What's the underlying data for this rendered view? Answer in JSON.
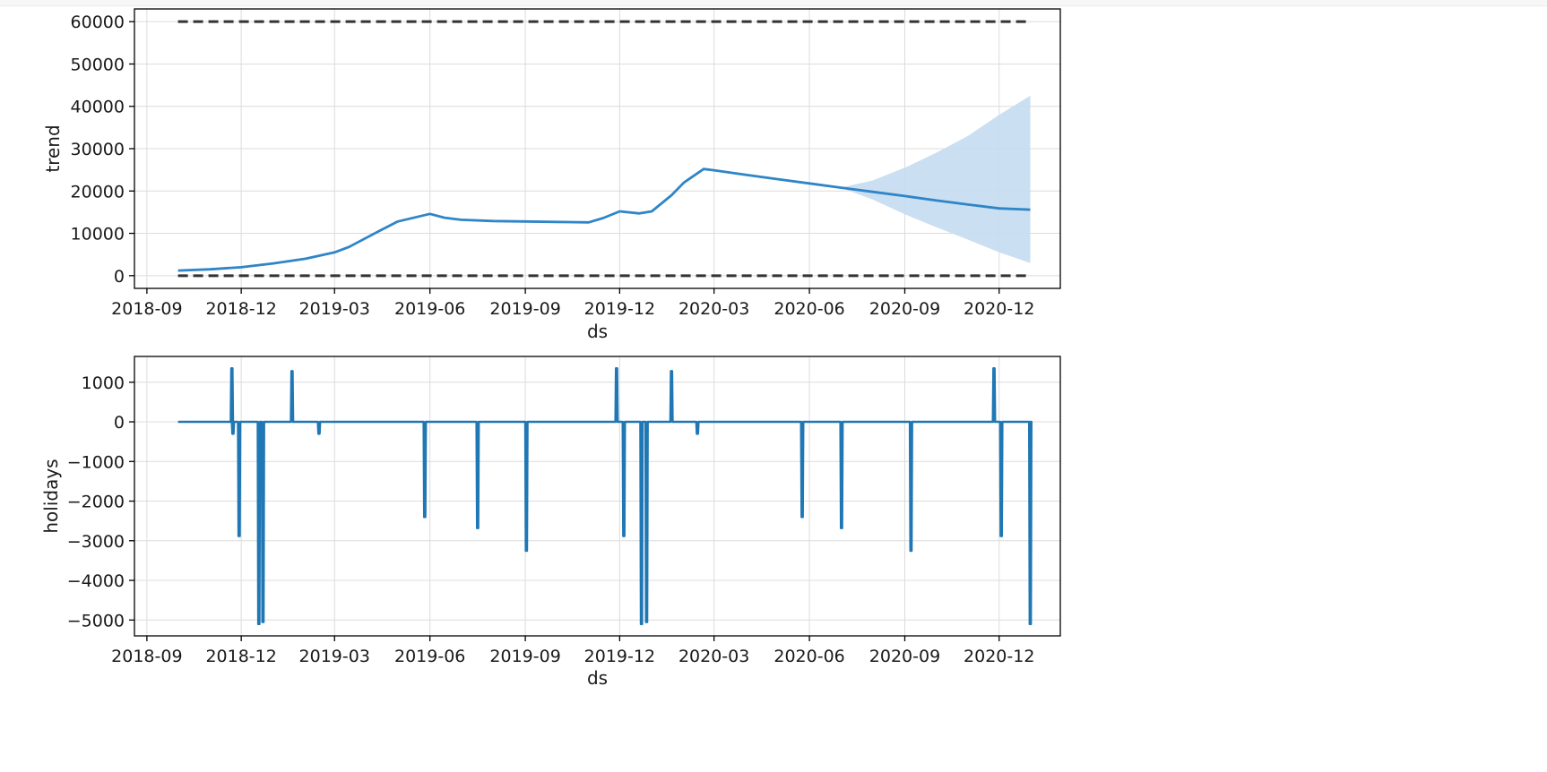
{
  "chart_data": [
    {
      "type": "line",
      "xlabel": "ds",
      "ylabel": "trend",
      "ylim": [
        -3000,
        63000
      ],
      "x_ticks": [
        "2018-09",
        "2018-12",
        "2019-03",
        "2019-06",
        "2019-09",
        "2019-12",
        "2020-03",
        "2020-06",
        "2020-09",
        "2020-12"
      ],
      "y_ticks": [
        0,
        10000,
        20000,
        30000,
        40000,
        50000,
        60000
      ],
      "grid": true,
      "colors": {
        "line": "#2e85c7",
        "band": "#c4dbef",
        "cap": "#333333"
      },
      "cap_lines": [
        {
          "y": 60000,
          "from": "2018-10-01",
          "to": "2020-12-31",
          "style": "dashed"
        },
        {
          "y": 0,
          "from": "2018-10-01",
          "to": "2020-12-31",
          "style": "dashed"
        }
      ],
      "series": [
        {
          "x": [
            "2018-10-01",
            "2018-11-01",
            "2018-12-01",
            "2019-01-01",
            "2019-02-01",
            "2019-03-01",
            "2019-03-15",
            "2019-04-01",
            "2019-04-15",
            "2019-05-01",
            "2019-06-01",
            "2019-06-15",
            "2019-07-01",
            "2019-08-01",
            "2019-09-01",
            "2019-10-01",
            "2019-11-01",
            "2019-11-15",
            "2019-12-01",
            "2019-12-20",
            "2020-01-01",
            "2020-01-20",
            "2020-02-01",
            "2020-02-20",
            "2020-03-01",
            "2020-04-01",
            "2020-05-01",
            "2020-06-01",
            "2020-07-01",
            "2020-08-01",
            "2020-09-01",
            "2020-10-01",
            "2020-11-01",
            "2020-12-01",
            "2020-12-31"
          ],
          "values": [
            1200,
            1500,
            2000,
            2900,
            4000,
            5500,
            6800,
            9000,
            10800,
            12800,
            14600,
            13700,
            13200,
            12900,
            12800,
            12700,
            12600,
            13600,
            15200,
            14700,
            15200,
            19000,
            22000,
            25200,
            24900,
            23800,
            22800,
            21800,
            20800,
            19800,
            18800,
            17800,
            16800,
            15900,
            15600
          ]
        }
      ],
      "uncertainty_band": {
        "x": [
          "2020-07-01",
          "2020-08-01",
          "2020-09-01",
          "2020-10-01",
          "2020-11-01",
          "2020-12-01",
          "2020-12-31"
        ],
        "upper": [
          20800,
          22500,
          25500,
          29000,
          33000,
          38000,
          42500
        ],
        "lower": [
          20800,
          18000,
          14500,
          11500,
          8500,
          5500,
          3000
        ]
      }
    },
    {
      "type": "line",
      "xlabel": "ds",
      "ylabel": "holidays",
      "ylim": [
        -5400,
        1650
      ],
      "x_ticks": [
        "2018-09",
        "2018-12",
        "2019-03",
        "2019-06",
        "2019-09",
        "2019-12",
        "2020-03",
        "2020-06",
        "2020-09",
        "2020-12"
      ],
      "y_ticks": [
        1000,
        0,
        -1000,
        -2000,
        -3000,
        -4000,
        -5000
      ],
      "grid": true,
      "colors": {
        "line": "#1f77b4"
      },
      "x_range": [
        "2018-10-01",
        "2020-12-31"
      ],
      "baseline": 0,
      "spikes": [
        {
          "x": "2018-11-22",
          "value": 1350
        },
        {
          "x": "2018-11-23",
          "value": -300
        },
        {
          "x": "2018-11-29",
          "value": -2880
        },
        {
          "x": "2018-12-18",
          "value": -5100
        },
        {
          "x": "2018-12-22",
          "value": -5050
        },
        {
          "x": "2019-01-19",
          "value": 1280
        },
        {
          "x": "2019-02-14",
          "value": -300
        },
        {
          "x": "2019-05-27",
          "value": -2400
        },
        {
          "x": "2019-07-17",
          "value": -2680
        },
        {
          "x": "2019-09-02",
          "value": -3250
        },
        {
          "x": "2019-11-28",
          "value": 1350
        },
        {
          "x": "2019-12-05",
          "value": -2880
        },
        {
          "x": "2019-12-22",
          "value": -5100
        },
        {
          "x": "2019-12-27",
          "value": -5050
        },
        {
          "x": "2020-01-20",
          "value": 1280
        },
        {
          "x": "2020-02-14",
          "value": -300
        },
        {
          "x": "2020-05-25",
          "value": -2400
        },
        {
          "x": "2020-07-02",
          "value": -2680
        },
        {
          "x": "2020-09-07",
          "value": -3250
        },
        {
          "x": "2020-11-26",
          "value": 1350
        },
        {
          "x": "2020-12-03",
          "value": -2880
        },
        {
          "x": "2020-12-31",
          "value": -5100
        }
      ]
    }
  ]
}
